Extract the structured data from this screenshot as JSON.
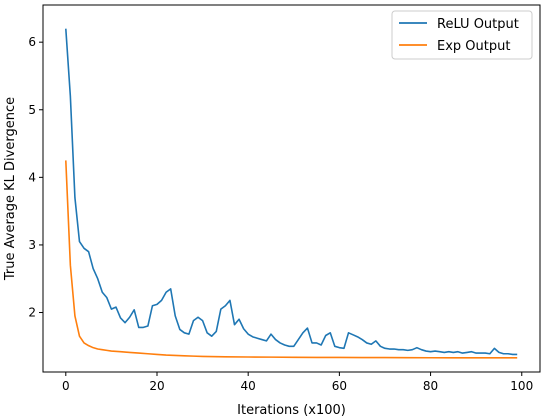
{
  "chart_data": {
    "type": "line",
    "xlabel": "Iterations (x100)",
    "ylabel": "True Average KL Divergence",
    "xlim": [
      -5,
      104
    ],
    "ylim": [
      1.12,
      6.55
    ],
    "xticks": [
      0,
      20,
      40,
      60,
      80,
      100
    ],
    "yticks": [
      2,
      3,
      4,
      5,
      6
    ],
    "grid": false,
    "legend_position": "top-right",
    "series": [
      {
        "name": "ReLU Output",
        "color": "#1f77b4",
        "x": [
          0,
          1,
          2,
          3,
          4,
          5,
          6,
          7,
          8,
          9,
          10,
          11,
          12,
          13,
          14,
          15,
          16,
          17,
          18,
          19,
          20,
          21,
          22,
          23,
          24,
          25,
          26,
          27,
          28,
          29,
          30,
          31,
          32,
          33,
          34,
          35,
          36,
          37,
          38,
          39,
          40,
          41,
          42,
          43,
          44,
          45,
          46,
          47,
          48,
          49,
          50,
          51,
          52,
          53,
          54,
          55,
          56,
          57,
          58,
          59,
          60,
          61,
          62,
          63,
          64,
          65,
          66,
          67,
          68,
          69,
          70,
          71,
          72,
          73,
          74,
          75,
          76,
          77,
          78,
          79,
          80,
          81,
          82,
          83,
          84,
          85,
          86,
          87,
          88,
          89,
          90,
          91,
          92,
          93,
          94,
          95,
          96,
          97,
          98,
          99
        ],
        "y": [
          6.2,
          5.2,
          3.7,
          3.05,
          2.95,
          2.9,
          2.65,
          2.5,
          2.3,
          2.22,
          2.05,
          2.08,
          1.92,
          1.85,
          1.93,
          2.04,
          1.78,
          1.78,
          1.8,
          2.1,
          2.12,
          2.18,
          2.3,
          2.35,
          1.95,
          1.75,
          1.7,
          1.68,
          1.88,
          1.93,
          1.88,
          1.7,
          1.65,
          1.72,
          2.05,
          2.1,
          2.18,
          1.82,
          1.9,
          1.76,
          1.68,
          1.64,
          1.62,
          1.6,
          1.58,
          1.68,
          1.6,
          1.55,
          1.52,
          1.5,
          1.5,
          1.6,
          1.7,
          1.77,
          1.55,
          1.55,
          1.52,
          1.66,
          1.7,
          1.5,
          1.48,
          1.47,
          1.7,
          1.67,
          1.64,
          1.6,
          1.55,
          1.53,
          1.58,
          1.5,
          1.47,
          1.46,
          1.46,
          1.45,
          1.45,
          1.44,
          1.45,
          1.48,
          1.45,
          1.43,
          1.42,
          1.43,
          1.42,
          1.41,
          1.42,
          1.41,
          1.42,
          1.4,
          1.41,
          1.42,
          1.4,
          1.4,
          1.4,
          1.39,
          1.47,
          1.41,
          1.39,
          1.39,
          1.38,
          1.38
        ]
      },
      {
        "name": "Exp Output",
        "color": "#ff7f0e",
        "x": [
          0,
          1,
          2,
          3,
          4,
          5,
          6,
          7,
          8,
          9,
          10,
          12,
          14,
          16,
          18,
          20,
          22,
          24,
          26,
          28,
          30,
          35,
          40,
          45,
          50,
          55,
          60,
          65,
          70,
          75,
          80,
          85,
          90,
          95,
          99
        ],
        "y": [
          4.25,
          2.7,
          1.95,
          1.65,
          1.55,
          1.51,
          1.48,
          1.46,
          1.45,
          1.44,
          1.43,
          1.42,
          1.41,
          1.4,
          1.39,
          1.38,
          1.37,
          1.365,
          1.36,
          1.355,
          1.35,
          1.345,
          1.342,
          1.34,
          1.338,
          1.336,
          1.335,
          1.334,
          1.333,
          1.332,
          1.331,
          1.33,
          1.33,
          1.33,
          1.33
        ]
      }
    ]
  }
}
